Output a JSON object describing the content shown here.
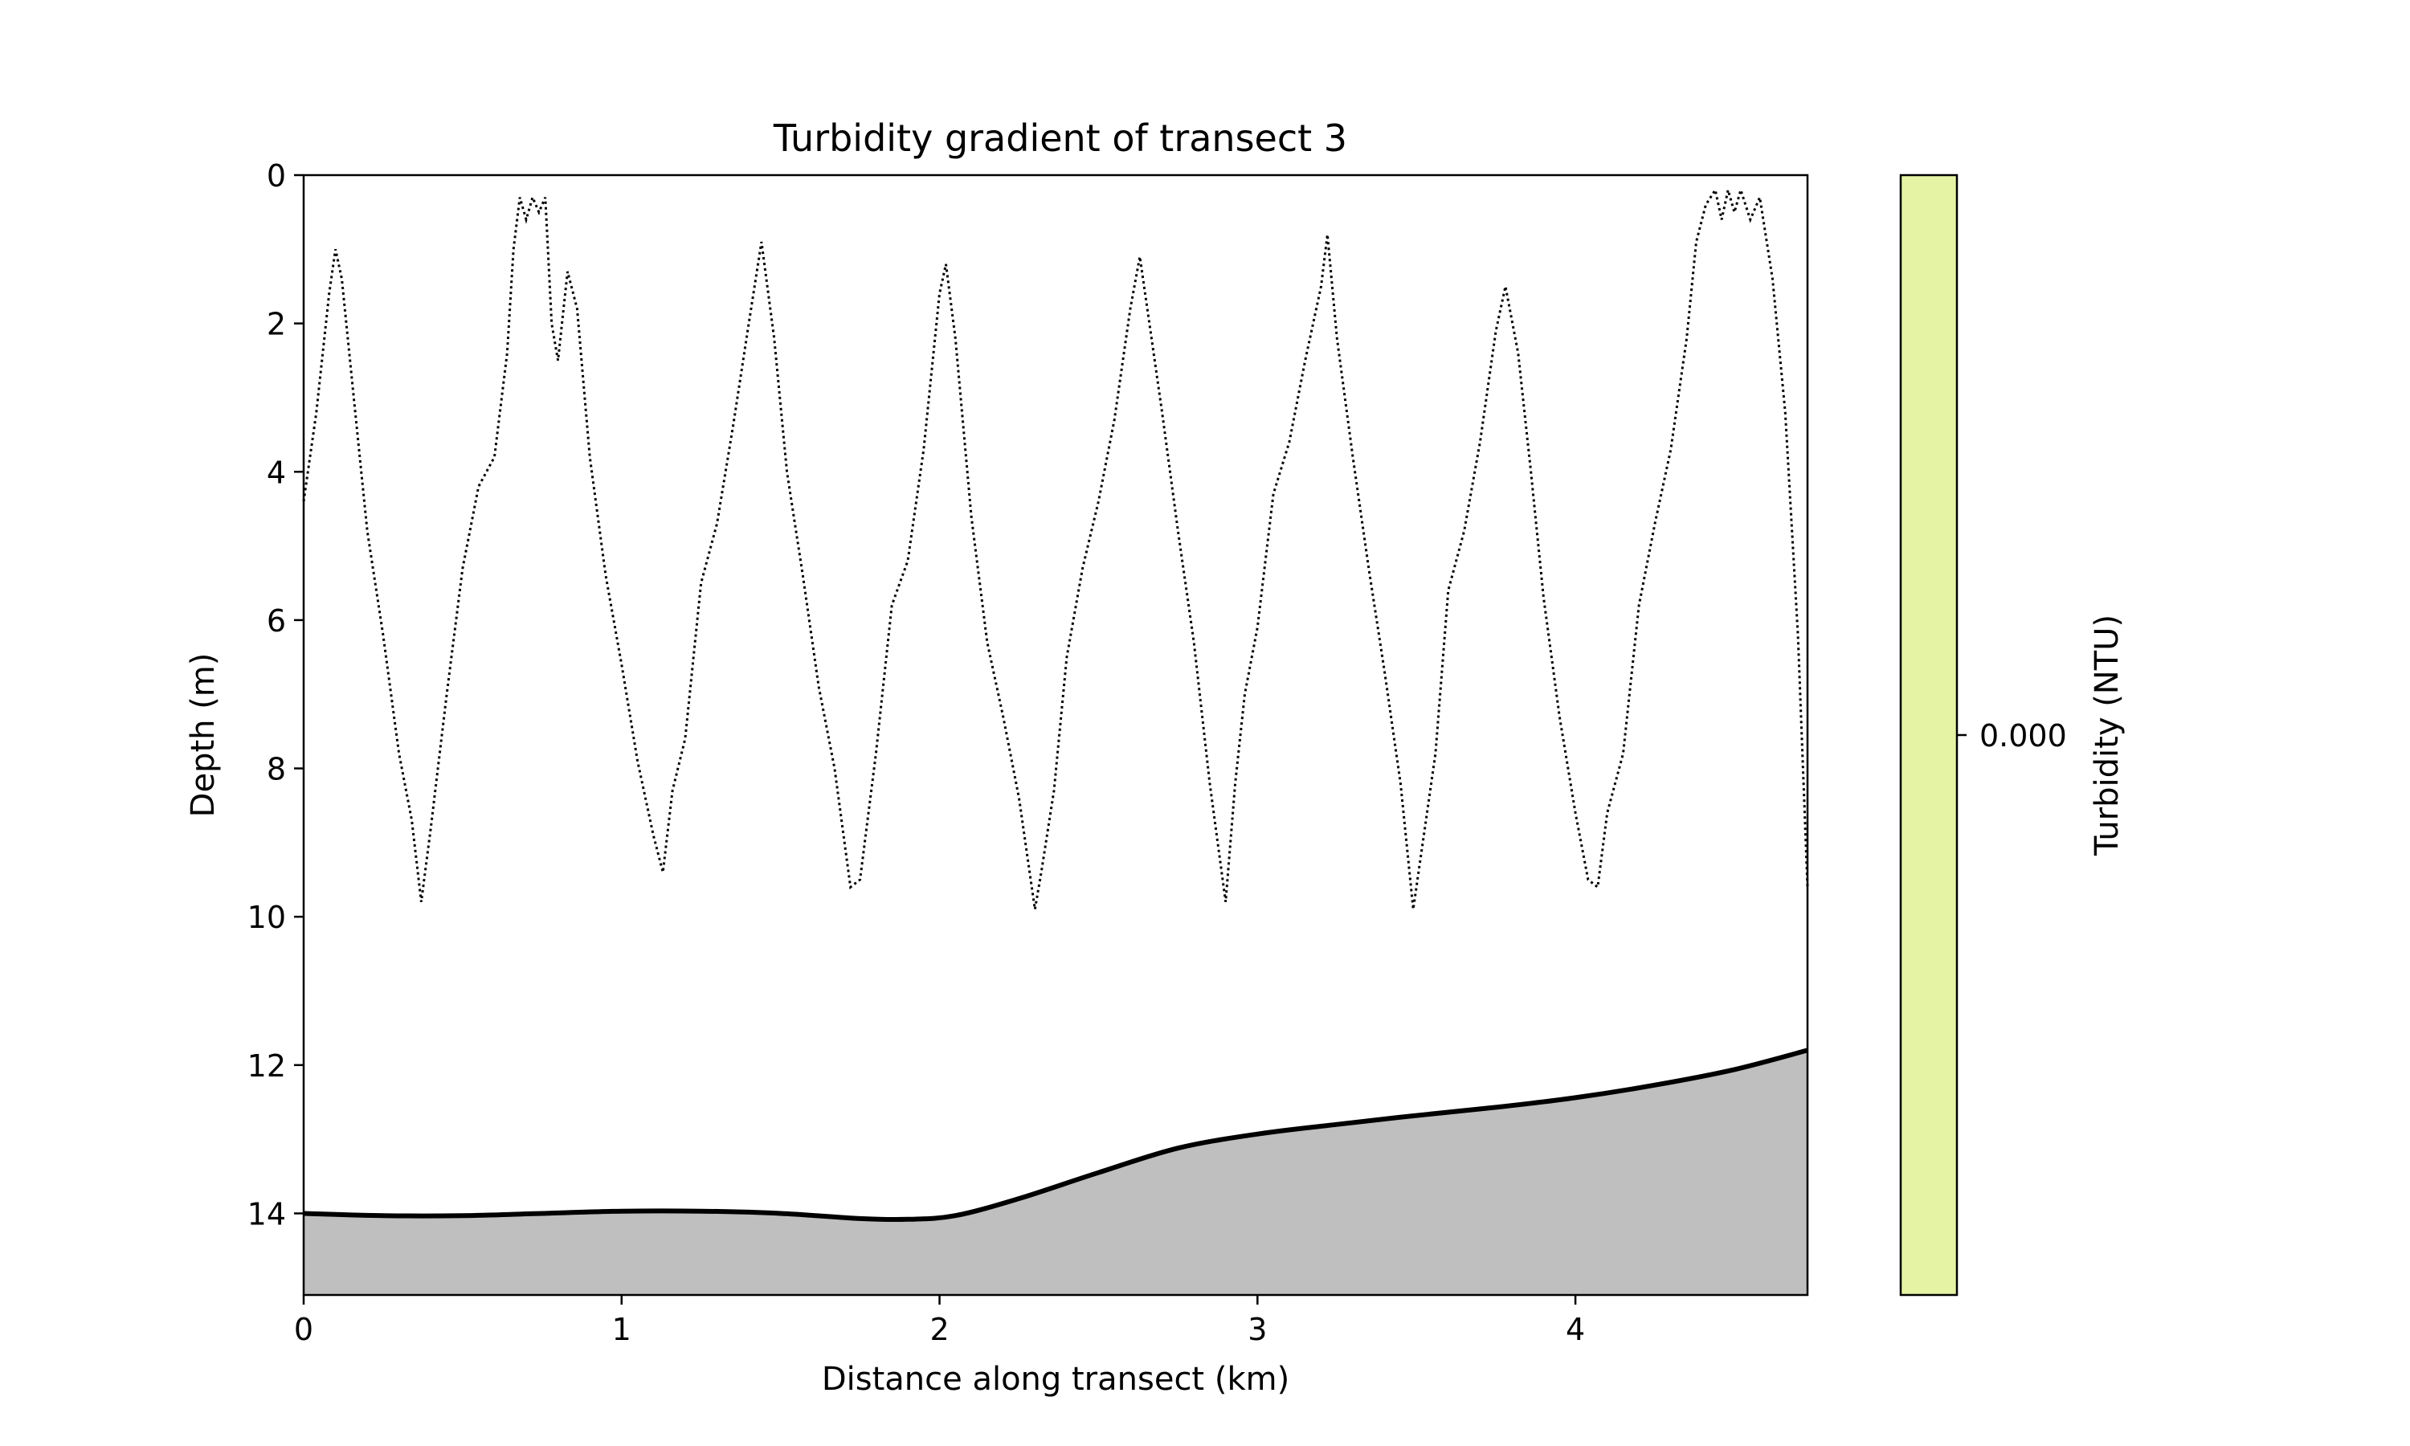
{
  "chart_data": {
    "type": "line",
    "title": "Turbidity gradient of transect 3",
    "xlabel": "Distance along transect (km)",
    "ylabel": "Depth (m)",
    "xlim": [
      0,
      4.73
    ],
    "ylim": [
      15.1,
      0
    ],
    "y_inverted": true,
    "grid": false,
    "x_ticks": [
      "0",
      "1",
      "2",
      "3",
      "4"
    ],
    "y_ticks": [
      "0",
      "2",
      "4",
      "6",
      "8",
      "10",
      "12",
      "14"
    ],
    "colors": {
      "seabed_fill": "#bfbfbf",
      "seabed_line": "#000000",
      "profile_line": "#000000",
      "colorbar_fill": "#e4f4a4"
    },
    "colorbar": {
      "label": "Turbidity (NTU)",
      "ticks": [
        "0.000"
      ]
    },
    "series": [
      {
        "style": "dotted",
        "x": [
          0.0,
          0.04,
          0.08,
          0.1,
          0.12,
          0.16,
          0.2,
          0.25,
          0.3,
          0.34,
          0.37,
          0.4,
          0.45,
          0.5,
          0.55,
          0.6,
          0.64,
          0.66,
          0.68,
          0.7,
          0.72,
          0.74,
          0.76,
          0.78,
          0.8,
          0.83,
          0.86,
          0.9,
          0.95,
          1.0,
          1.05,
          1.1,
          1.13,
          1.16,
          1.2,
          1.25,
          1.3,
          1.35,
          1.4,
          1.44,
          1.48,
          1.52,
          1.57,
          1.62,
          1.67,
          1.72,
          1.75,
          1.8,
          1.85,
          1.9,
          1.95,
          2.0,
          2.02,
          2.05,
          2.1,
          2.15,
          2.2,
          2.25,
          2.3,
          2.32,
          2.36,
          2.4,
          2.45,
          2.5,
          2.55,
          2.6,
          2.63,
          2.66,
          2.7,
          2.75,
          2.8,
          2.85,
          2.9,
          2.93,
          2.96,
          3.0,
          3.05,
          3.1,
          3.15,
          3.2,
          3.22,
          3.25,
          3.3,
          3.35,
          3.4,
          3.45,
          3.49,
          3.52,
          3.56,
          3.6,
          3.65,
          3.7,
          3.75,
          3.78,
          3.82,
          3.86,
          3.9,
          3.95,
          4.0,
          4.04,
          4.07,
          4.1,
          4.15,
          4.2,
          4.25,
          4.3,
          4.35,
          4.38,
          4.41,
          4.44,
          4.46,
          4.48,
          4.5,
          4.52,
          4.55,
          4.58,
          4.62,
          4.66,
          4.7,
          4.73
        ],
        "y": [
          4.4,
          3.2,
          1.6,
          1.0,
          1.4,
          3.1,
          4.8,
          6.2,
          7.8,
          8.7,
          9.8,
          8.8,
          7.0,
          5.3,
          4.2,
          3.8,
          2.4,
          1.0,
          0.3,
          0.6,
          0.3,
          0.5,
          0.3,
          2.0,
          2.5,
          1.3,
          1.8,
          3.8,
          5.4,
          6.6,
          7.9,
          8.9,
          9.4,
          8.3,
          7.6,
          5.5,
          4.7,
          3.4,
          2.0,
          0.9,
          2.2,
          4.0,
          5.4,
          6.9,
          8.0,
          9.6,
          9.5,
          7.8,
          5.8,
          5.2,
          3.7,
          1.6,
          1.2,
          2.2,
          4.6,
          6.3,
          7.3,
          8.4,
          9.9,
          9.4,
          8.3,
          6.5,
          5.3,
          4.4,
          3.3,
          1.8,
          1.1,
          2.0,
          3.2,
          4.8,
          6.3,
          8.2,
          9.8,
          8.2,
          7.0,
          6.1,
          4.3,
          3.6,
          2.5,
          1.5,
          0.8,
          2.2,
          3.8,
          5.3,
          6.7,
          8.2,
          9.9,
          9.0,
          7.8,
          5.6,
          4.8,
          3.6,
          2.1,
          1.5,
          2.4,
          4.0,
          5.7,
          7.3,
          8.6,
          9.5,
          9.6,
          8.6,
          7.8,
          5.8,
          4.7,
          3.7,
          2.2,
          0.9,
          0.4,
          0.2,
          0.6,
          0.2,
          0.5,
          0.2,
          0.6,
          0.3,
          1.4,
          3.2,
          6.2,
          9.6
        ]
      },
      {
        "style": "solid-filled",
        "x": [
          0.0,
          0.25,
          0.5,
          0.75,
          1.0,
          1.25,
          1.5,
          1.75,
          1.9,
          2.05,
          2.25,
          2.5,
          2.75,
          3.0,
          3.25,
          3.5,
          3.75,
          4.0,
          4.25,
          4.5,
          4.73
        ],
        "y": [
          14.0,
          14.03,
          14.03,
          14.0,
          13.97,
          13.97,
          14.0,
          14.07,
          14.08,
          14.03,
          13.8,
          13.45,
          13.12,
          12.93,
          12.8,
          12.68,
          12.57,
          12.44,
          12.27,
          12.06,
          11.8
        ]
      }
    ]
  }
}
